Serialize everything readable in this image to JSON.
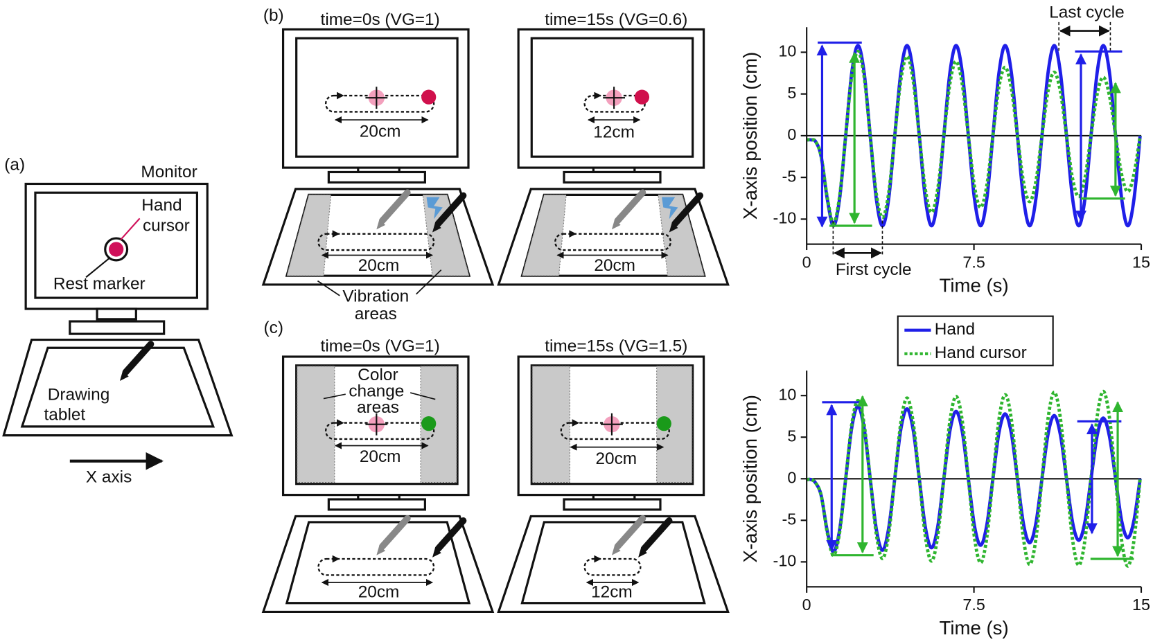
{
  "figure": {
    "panel_a": {
      "label": "(a)",
      "monitor": "Monitor",
      "hand": "Hand",
      "cursor": "cursor",
      "rest_marker": "Rest marker",
      "drawing": "Drawing",
      "tablet": "tablet",
      "x_axis": "X axis"
    },
    "panel_b": {
      "label": "(b)",
      "left_title": "time=0s (VG=1)",
      "right_title": "time=15s (VG=0.6)",
      "left_screen_distance": "20cm",
      "right_screen_distance": "12cm",
      "left_tablet_distance": "20cm",
      "right_tablet_distance": "20cm",
      "areas_line1": "Vibration",
      "areas_line2": "areas"
    },
    "panel_c": {
      "label": "(c)",
      "left_title": "time=0s (VG=1)",
      "right_title": "time=15s (VG=1.5)",
      "areas_line1": "Color",
      "areas_line2": "change",
      "areas_line3": "areas",
      "left_screen_distance": "20cm",
      "right_screen_distance": "20cm",
      "left_tablet_distance": "20cm",
      "right_tablet_distance": "12cm"
    }
  },
  "chart_data": [
    {
      "type": "line",
      "xlabel": "Time (s)",
      "ylabel": "X-axis position (cm)",
      "annotations": [
        "Last cycle",
        "First cycle"
      ],
      "xlim": [
        0,
        15
      ],
      "ylim": [
        -13,
        13
      ],
      "xticks": [
        0,
        7.5,
        15
      ],
      "yticks": [
        -10,
        -5,
        0,
        5,
        10
      ],
      "x": [
        0,
        0.2,
        0.4,
        0.65,
        0.925,
        1.2,
        1.475,
        1.75,
        2.025,
        2.3,
        2.575,
        2.85,
        3.125,
        3.4,
        3.675,
        3.95,
        4.225,
        4.5,
        4.775,
        5.05,
        5.325,
        5.6,
        5.875,
        6.15,
        6.425,
        6.7,
        6.975,
        7.25,
        7.525,
        7.8,
        8.075,
        8.35,
        8.625,
        8.9,
        9.175,
        9.45,
        9.725,
        10,
        10.275,
        10.55,
        10.825,
        11.1,
        11.375,
        11.65,
        11.925,
        12.2,
        12.475,
        12.75,
        13.025,
        13.3,
        13.575,
        13.85,
        14.125,
        14.4,
        14.675,
        14.95
      ],
      "series": [
        {
          "name": "Hand",
          "color": "#1f1fe8",
          "style": "solid",
          "values": [
            -0.5,
            -0.5,
            -0.7,
            -2.5,
            -7.6,
            -10.8,
            -7.6,
            0,
            7.6,
            10.8,
            7.6,
            0,
            -7.6,
            -10.8,
            -7.6,
            0,
            7.6,
            10.8,
            7.6,
            0,
            -7.6,
            -10.8,
            -7.6,
            0,
            7.6,
            10.8,
            7.6,
            0,
            -7.6,
            -10.8,
            -7.6,
            0,
            7.6,
            10.8,
            7.6,
            0,
            -7.6,
            -10.8,
            -7.6,
            0,
            7.6,
            10.8,
            7.6,
            0,
            -7.6,
            -10.8,
            -7.6,
            0,
            7.6,
            10.8,
            7.6,
            0,
            -7.6,
            -10.8,
            -7.6,
            0
          ]
        },
        {
          "name": "Hand cursor",
          "color": "#2fb52f",
          "style": "dotted",
          "values": [
            -0.5,
            -0.5,
            -0.7,
            -2.5,
            -7.4,
            -10.5,
            -7.3,
            0,
            7.2,
            10.1,
            7.1,
            0,
            -7.0,
            -9.8,
            -6.9,
            0,
            6.7,
            9.5,
            6.6,
            0,
            -6.5,
            -9.2,
            -6.4,
            0,
            6.3,
            8.9,
            6.2,
            0,
            -6.1,
            -8.6,
            -6.0,
            0,
            5.9,
            8.2,
            5.7,
            0,
            -5.6,
            -7.9,
            -5.5,
            0,
            5.4,
            7.6,
            5.3,
            0,
            -5.2,
            -7.3,
            -5.1,
            0,
            5.0,
            7.0,
            4.8,
            0,
            -4.7,
            -6.7,
            -4.6,
            0
          ]
        }
      ]
    },
    {
      "type": "line",
      "xlabel": "Time (s)",
      "ylabel": "X-axis position (cm)",
      "xlim": [
        0,
        15
      ],
      "ylim": [
        -13,
        13
      ],
      "xticks": [
        0,
        7.5,
        15
      ],
      "yticks": [
        -10,
        -5,
        0,
        5,
        10
      ],
      "x": [
        0,
        0.2,
        0.4,
        0.65,
        0.925,
        1.2,
        1.475,
        1.75,
        2.025,
        2.3,
        2.575,
        2.85,
        3.125,
        3.4,
        3.675,
        3.95,
        4.225,
        4.5,
        4.775,
        5.05,
        5.325,
        5.6,
        5.875,
        6.15,
        6.425,
        6.7,
        6.975,
        7.25,
        7.525,
        7.8,
        8.075,
        8.35,
        8.625,
        8.9,
        9.175,
        9.45,
        9.725,
        10,
        10.275,
        10.55,
        10.825,
        11.1,
        11.375,
        11.65,
        11.925,
        12.2,
        12.475,
        12.75,
        13.025,
        13.3,
        13.575,
        13.85,
        14.125,
        14.4,
        14.675,
        14.95
      ],
      "series": [
        {
          "color": "#1f1fe8",
          "style": "solid",
          "values": [
            -0.1,
            -0.1,
            -0.5,
            -2.0,
            -6.3,
            -8.8,
            -6.2,
            0,
            6.2,
            8.7,
            6.1,
            0,
            -6.1,
            -8.6,
            -6.0,
            0,
            6.0,
            8.4,
            5.9,
            0,
            -5.9,
            -8.3,
            -5.8,
            0,
            5.8,
            8.1,
            5.7,
            0,
            -5.7,
            -8.0,
            -5.6,
            0,
            5.6,
            7.8,
            5.5,
            0,
            -5.5,
            -7.7,
            -5.4,
            0,
            5.4,
            7.6,
            5.3,
            0,
            -5.3,
            -7.4,
            -5.2,
            0,
            5.2,
            7.3,
            5.1,
            0,
            -5.1,
            -7.1,
            -5.0,
            0
          ]
        },
        {
          "color": "#2fb52f",
          "style": "dotted",
          "values": [
            -0.1,
            -0.1,
            -0.5,
            -2.0,
            -6.5,
            -9.2,
            -6.5,
            0,
            6.6,
            9.4,
            6.6,
            0,
            -6.7,
            -9.6,
            -6.7,
            0,
            6.8,
            9.7,
            6.8,
            0,
            -7.0,
            -9.9,
            -6.9,
            0,
            7.0,
            9.9,
            7.0,
            0,
            -7.1,
            -10.1,
            -7.1,
            0,
            7.2,
            10.1,
            7.2,
            0,
            -7.3,
            -10.3,
            -7.3,
            0,
            7.3,
            10.4,
            7.3,
            0,
            -7.4,
            -10.4,
            -7.4,
            0,
            7.5,
            10.5,
            7.4,
            0,
            -7.5,
            -10.5,
            -7.4,
            0
          ]
        }
      ]
    }
  ]
}
